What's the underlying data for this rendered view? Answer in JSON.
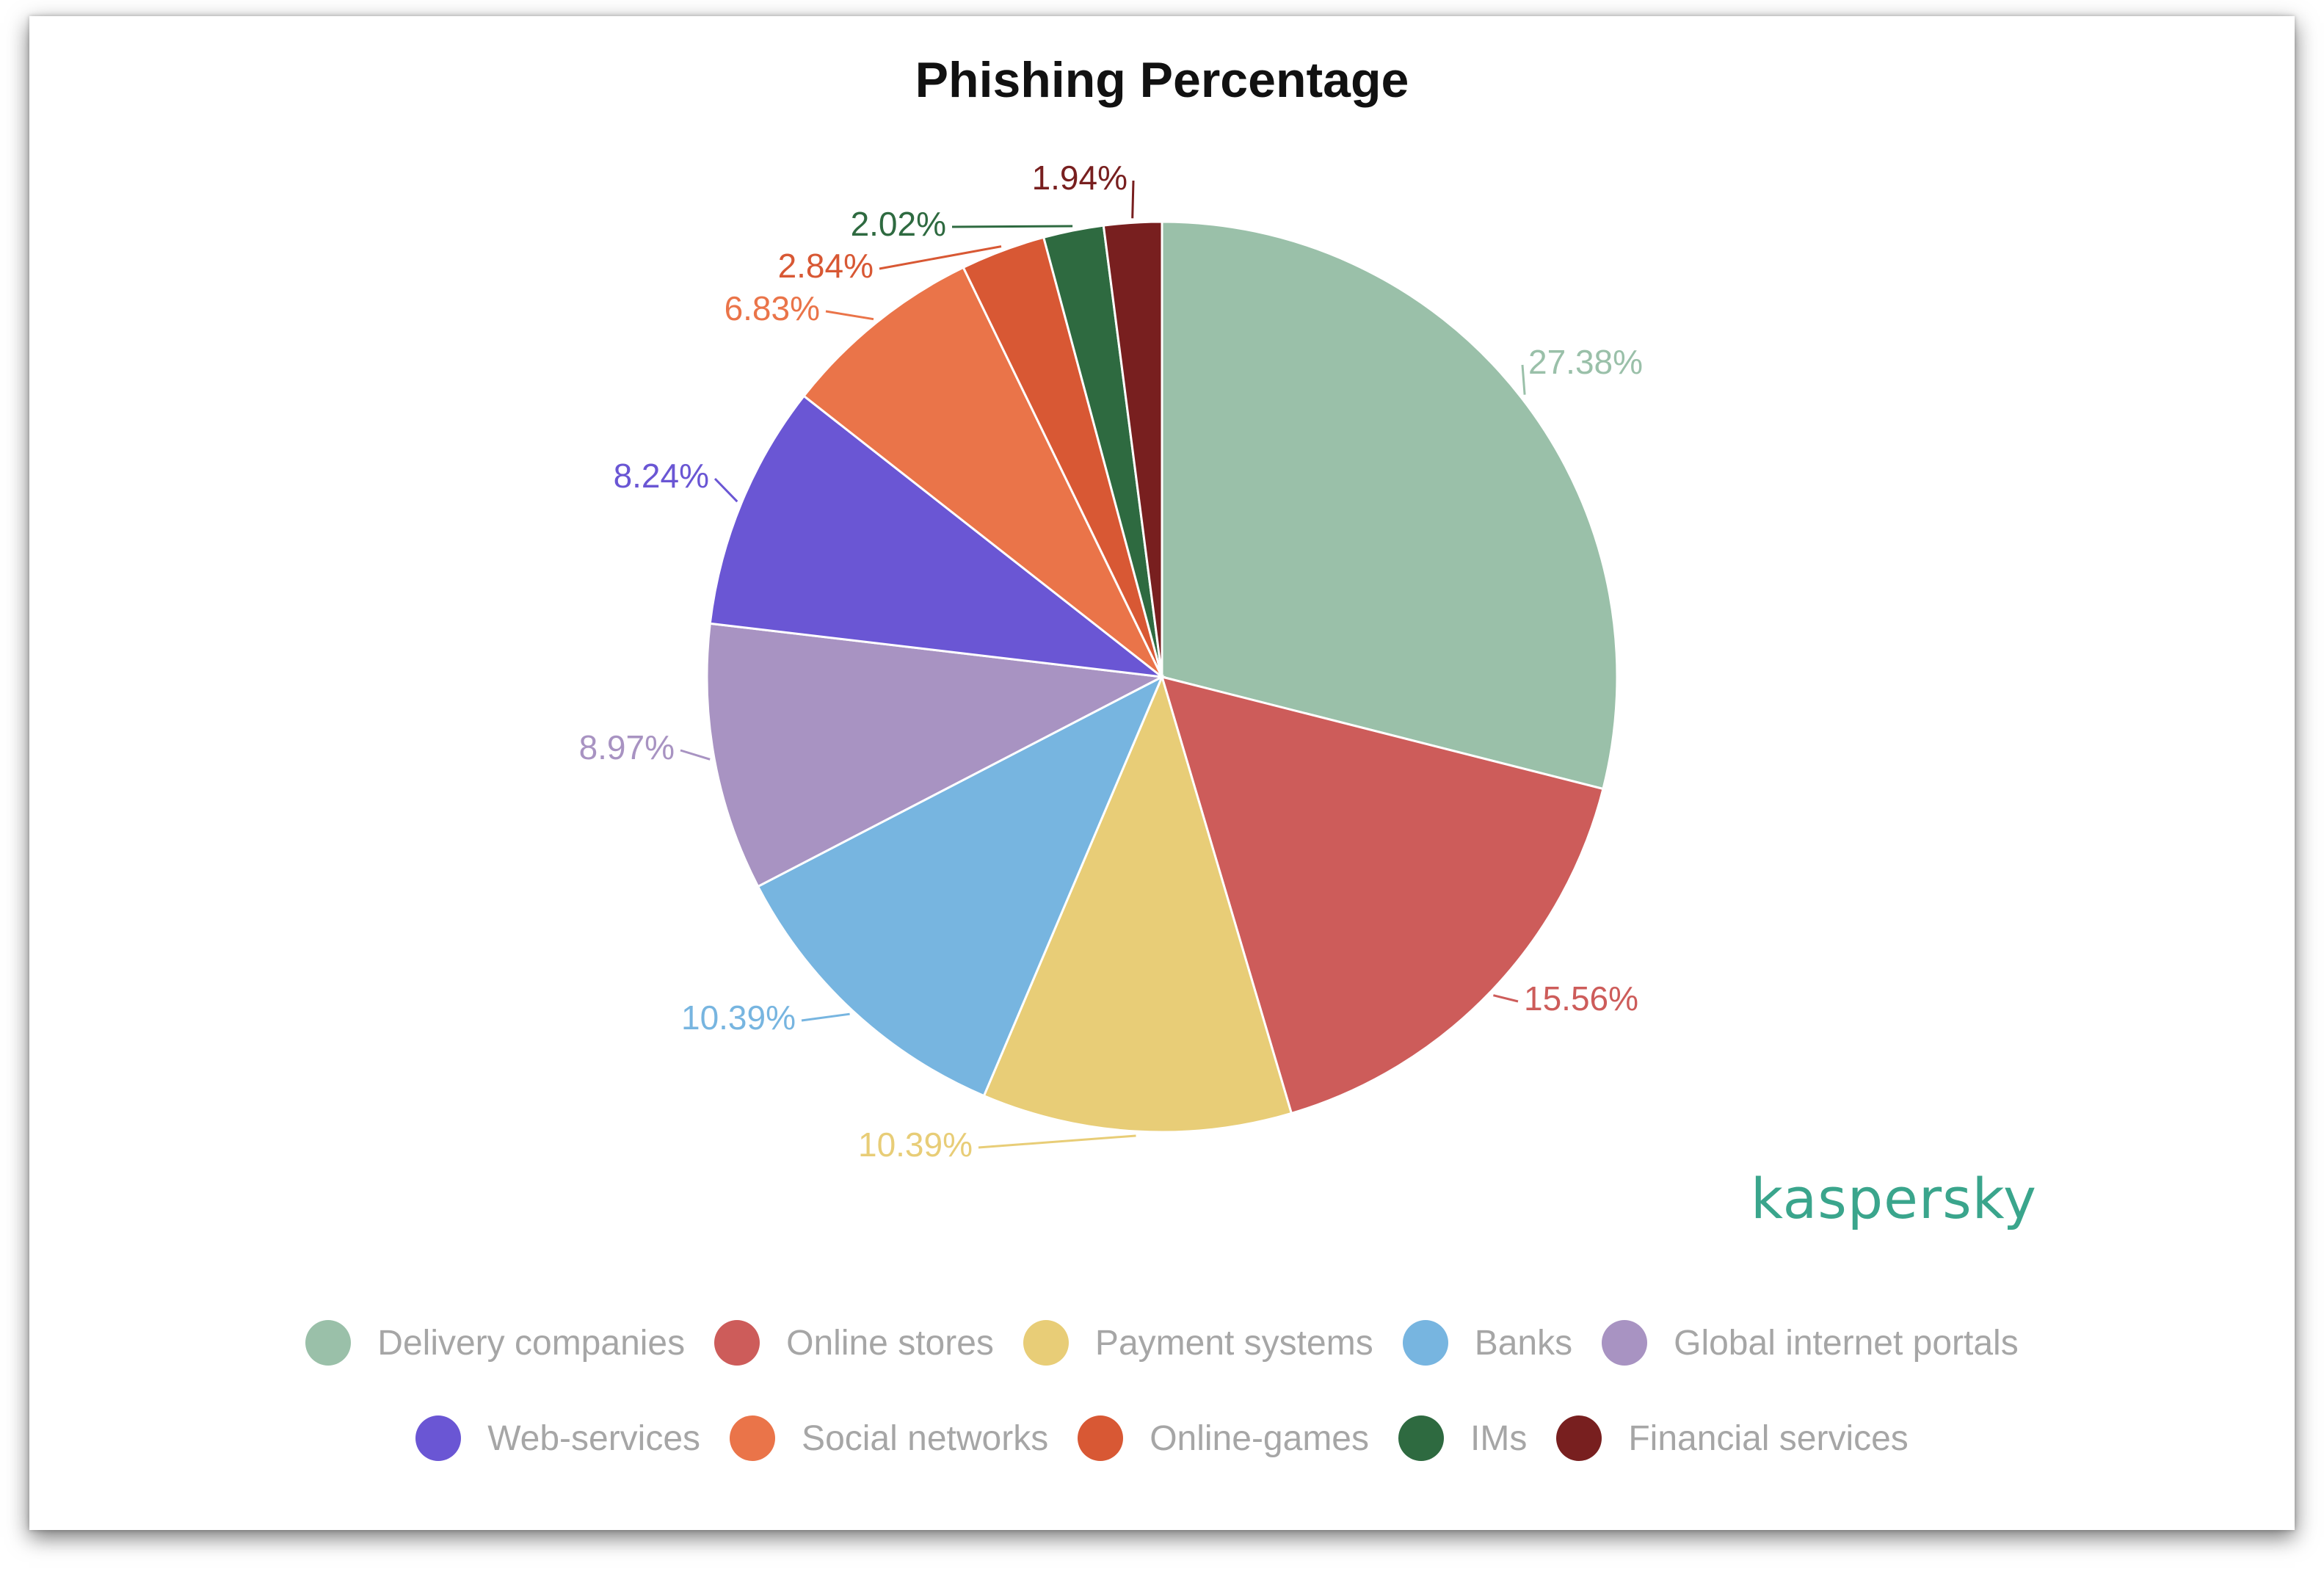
{
  "chart_data": {
    "type": "pie",
    "title": "Phishing Percentage",
    "slices": [
      {
        "label": "Delivery companies",
        "value": 27.38,
        "value_label": "27.38%",
        "color": "#9ac0a9"
      },
      {
        "label": "Online stores",
        "value": 15.56,
        "value_label": "15.56%",
        "color": "#cd5c5a"
      },
      {
        "label": "Payment systems",
        "value": 10.39,
        "value_label": "10.39%",
        "color": "#e8cd77"
      },
      {
        "label": "Banks",
        "value": 10.39,
        "value_label": "10.39%",
        "color": "#77b5e0"
      },
      {
        "label": "Global internet portals",
        "value": 8.97,
        "value_label": "8.97%",
        "color": "#a893c2"
      },
      {
        "label": "Web-services",
        "value": 8.24,
        "value_label": "8.24%",
        "color": "#6a56d4"
      },
      {
        "label": "Social networks",
        "value": 6.83,
        "value_label": "6.83%",
        "color": "#ea7449"
      },
      {
        "label": "Online-games",
        "value": 2.84,
        "value_label": "2.84%",
        "color": "#d85834"
      },
      {
        "label": "IMs",
        "value": 2.02,
        "value_label": "2.02%",
        "color": "#2e6a40"
      },
      {
        "label": "Financial services",
        "value": 1.94,
        "value_label": "1.94%",
        "color": "#781f1f"
      }
    ],
    "start_angle": "12 o'clock",
    "direction": "clockwise",
    "legend_position": "bottom"
  },
  "logo_text": "kaspersky"
}
